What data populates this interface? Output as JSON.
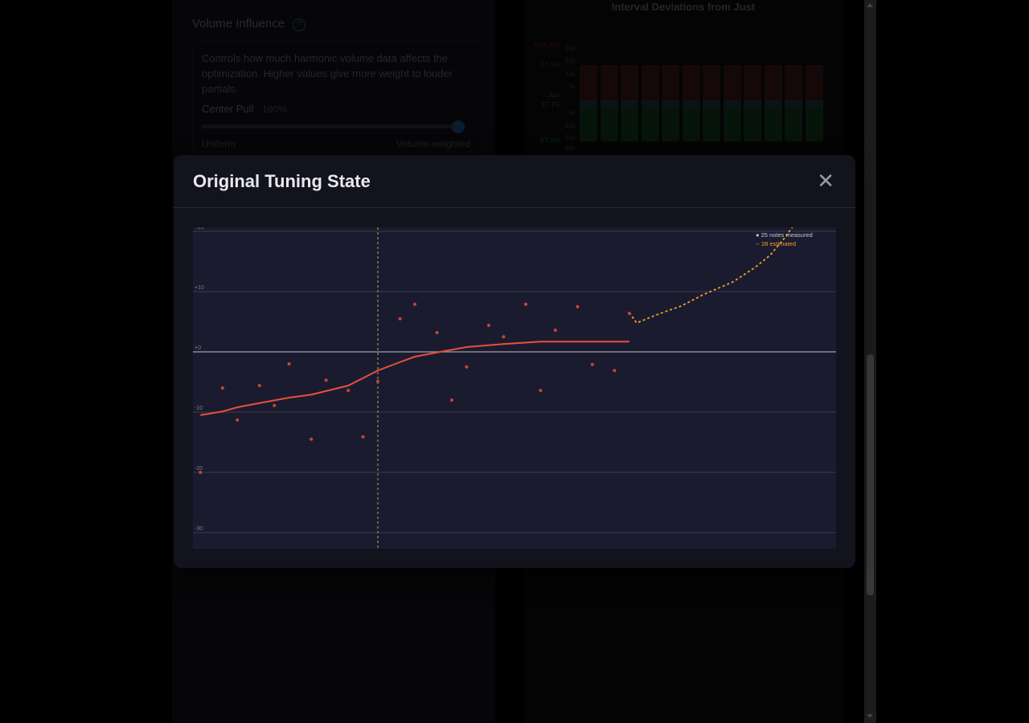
{
  "background": {
    "volume_influence": {
      "title": "Volume Influence",
      "help_icon": "?",
      "description": "Controls how much harmonic volume data affects the optimization. Higher values give more weight to louder partials.",
      "center_pull_label": "Center Pull",
      "center_pull_value": "100%",
      "slider_level": 1.0,
      "min_label": "Uniform",
      "max_label": "Volume-weighted"
    },
    "interval_chart": {
      "title": "Interval Deviations from Just",
      "labels": [
        "Pyth. M3",
        "20c",
        "15c",
        "ET M3",
        "10c",
        "5c",
        "Just",
        "ET P5",
        "-5c",
        "-10c",
        "-15c",
        "ET m3",
        "-20c"
      ],
      "bar_count": 12
    }
  },
  "modal": {
    "title": "Original Tuning State",
    "close_icon": "✕"
  },
  "chart_data": {
    "type": "scatter",
    "ylim": [
      -31.5,
      21.5
    ],
    "xlim": [
      0,
      87
    ],
    "y_ticks": [
      20,
      10,
      0,
      -10,
      -20,
      -30
    ],
    "y_tick_labels": [
      "+20",
      "+10",
      "+0",
      "-10",
      "-20",
      "-30"
    ],
    "reference_x": 25,
    "legend": {
      "position": "top-right",
      "measured": "● 25 notes measured",
      "estimated": "-- 28 estimated"
    },
    "colors": {
      "measured": "#c8453a",
      "trend": "#e8503a",
      "estimated": "#f0a020",
      "reference": "#c8a050",
      "bg": "#1b1b30"
    },
    "measured": [
      [
        1,
        -20
      ],
      [
        4,
        -6
      ],
      [
        6,
        -11.3
      ],
      [
        9,
        -5.6
      ],
      [
        11,
        -8.9
      ],
      [
        13,
        -2
      ],
      [
        16,
        -14.5
      ],
      [
        18,
        -4.7
      ],
      [
        21,
        -6.4
      ],
      [
        23,
        -14.1
      ],
      [
        25,
        -4.9
      ],
      [
        28,
        5.5
      ],
      [
        30,
        7.9
      ],
      [
        33,
        3.2
      ],
      [
        35,
        -8
      ],
      [
        37,
        -2.5
      ],
      [
        40,
        4.4
      ],
      [
        42,
        2.5
      ],
      [
        45,
        7.9
      ],
      [
        47,
        -6.4
      ],
      [
        49,
        3.6
      ],
      [
        52,
        7.5
      ],
      [
        54,
        -2.1
      ],
      [
        57,
        -3.1
      ],
      [
        59,
        6.4
      ]
    ],
    "trend": [
      [
        1,
        -10.5
      ],
      [
        4,
        -9.9
      ],
      [
        6,
        -9.2
      ],
      [
        9,
        -8.5
      ],
      [
        13,
        -7.6
      ],
      [
        16,
        -7.1
      ],
      [
        21,
        -5.6
      ],
      [
        25,
        -3.1
      ],
      [
        28,
        -1.7
      ],
      [
        30,
        -0.8
      ],
      [
        33,
        -0.1
      ],
      [
        37,
        0.8
      ],
      [
        42,
        1.3
      ],
      [
        47,
        1.7
      ],
      [
        59,
        1.7
      ]
    ],
    "estimated": [
      [
        59,
        6.5
      ],
      [
        60,
        4.8
      ],
      [
        63,
        6.3
      ],
      [
        66,
        7.6
      ],
      [
        69,
        9.5
      ],
      [
        73,
        11.6
      ],
      [
        76,
        14
      ],
      [
        78,
        16
      ],
      [
        80,
        18.9
      ],
      [
        81.5,
        21.5
      ]
    ]
  }
}
